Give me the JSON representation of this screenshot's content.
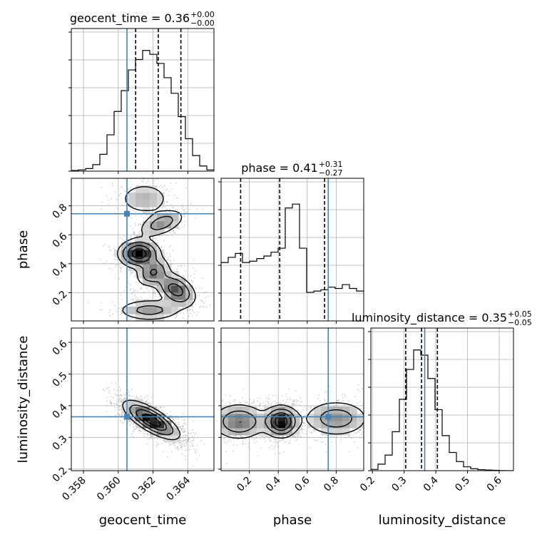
{
  "chart_data": {
    "type": "corner",
    "parameters": [
      "geocent_time",
      "phase",
      "luminosity_distance"
    ],
    "truth_color": "#4682b4",
    "titles": {
      "geocent_time": {
        "text": "geocent_time = 0.36",
        "plus": "+0.00",
        "minus": "−0.00"
      },
      "phase": {
        "text": "phase = 0.41",
        "plus": "+0.31",
        "minus": "−0.27"
      },
      "luminosity_distance": {
        "text": "luminosity_distance = 0.35",
        "plus": "+0.05",
        "minus": "−0.05"
      }
    },
    "axes": {
      "geocent_time": {
        "label": "geocent_time",
        "range": [
          0.3573,
          0.3655
        ],
        "ticks": [
          0.358,
          0.36,
          0.362,
          0.364
        ],
        "tick_labels": [
          "0.358",
          "0.360",
          "0.362",
          "0.364"
        ]
      },
      "phase": {
        "label": "phase",
        "range": [
          0.005,
          0.99
        ],
        "ticks": [
          0.2,
          0.4,
          0.6,
          0.8
        ],
        "tick_labels": [
          "0.2",
          "0.4",
          "0.6",
          "0.8"
        ]
      },
      "luminosity_distance": {
        "label": "luminosity_distance",
        "range": [
          0.195,
          0.645
        ],
        "ticks": [
          0.2,
          0.3,
          0.4,
          0.5,
          0.6
        ],
        "tick_labels": [
          "0.2",
          "0.3",
          "0.4",
          "0.5",
          "0.6"
        ]
      }
    },
    "truths": {
      "geocent_time": 0.3605,
      "phase": 0.745,
      "luminosity_distance": 0.365
    },
    "quantiles": {
      "geocent_time": [
        0.361,
        0.3623,
        0.3636
      ],
      "phase": [
        0.14,
        0.41,
        0.72
      ],
      "luminosity_distance": [
        0.305,
        0.355,
        0.405
      ]
    },
    "histograms": {
      "geocent_time": {
        "edges": [
          0.3573,
          0.35771,
          0.35812,
          0.35853,
          0.35894,
          0.35935,
          0.35976,
          0.36017,
          0.36058,
          0.36099,
          0.3614,
          0.36181,
          0.36222,
          0.36263,
          0.36304,
          0.36345,
          0.36386,
          0.36427,
          0.36468,
          0.36509,
          0.3655
        ],
        "counts": [
          0.005,
          0.01,
          0.02,
          0.05,
          0.13,
          0.28,
          0.46,
          0.62,
          0.78,
          0.86,
          0.93,
          0.9,
          0.83,
          0.72,
          0.6,
          0.42,
          0.25,
          0.12,
          0.04,
          0.01
        ]
      },
      "phase": {
        "edges": [
          0.005,
          0.05425,
          0.1035,
          0.15275,
          0.202,
          0.25125,
          0.3005,
          0.34975,
          0.399,
          0.44825,
          0.4975,
          0.54675,
          0.596,
          0.64525,
          0.6945,
          0.74375,
          0.793,
          0.84225,
          0.8915,
          0.94075,
          0.99
        ],
        "counts": [
          0.45,
          0.49,
          0.52,
          0.45,
          0.46,
          0.48,
          0.5,
          0.53,
          0.56,
          0.87,
          0.9,
          0.56,
          0.22,
          0.23,
          0.24,
          0.26,
          0.25,
          0.28,
          0.25,
          0.23
        ]
      },
      "luminosity_distance": {
        "edges": [
          0.195,
          0.2175,
          0.24,
          0.2625,
          0.285,
          0.3075,
          0.33,
          0.3525,
          0.375,
          0.3975,
          0.42,
          0.4425,
          0.465,
          0.4875,
          0.51,
          0.5325,
          0.555,
          0.5775,
          0.6,
          0.6225,
          0.645
        ],
        "counts": [
          0.01,
          0.05,
          0.12,
          0.3,
          0.55,
          0.78,
          0.93,
          0.89,
          0.71,
          0.47,
          0.27,
          0.14,
          0.07,
          0.03,
          0.015,
          0.008,
          0.005,
          0.003,
          0.001,
          0.0
        ]
      }
    },
    "densities": {
      "phase_vs_geocent_time": {
        "components": [
          {
            "x": 0.3612,
            "y": 0.47,
            "sx": 0.0006,
            "sy": 0.05,
            "rho": 0.0,
            "w": 1.0
          },
          {
            "x": 0.362,
            "y": 0.34,
            "sx": 0.0005,
            "sy": 0.05,
            "rho": 0.3,
            "w": 0.55
          },
          {
            "x": 0.3633,
            "y": 0.22,
            "sx": 0.0006,
            "sy": 0.06,
            "rho": -0.4,
            "w": 0.7
          },
          {
            "x": 0.3618,
            "y": 0.08,
            "sx": 0.001,
            "sy": 0.04,
            "rho": 0.0,
            "w": 0.4
          },
          {
            "x": 0.3625,
            "y": 0.68,
            "sx": 0.0007,
            "sy": 0.05,
            "rho": 0.5,
            "w": 0.45
          },
          {
            "x": 0.3615,
            "y": 0.85,
            "sx": 0.0008,
            "sy": 0.06,
            "rho": 0.0,
            "w": 0.3
          }
        ]
      },
      "luminosity_distance_vs_geocent_time": {
        "components": [
          {
            "x": 0.3619,
            "y": 0.355,
            "sx": 0.0008,
            "sy": 0.03,
            "rho": -0.75,
            "w": 1.0
          }
        ]
      },
      "luminosity_distance_vs_phase": {
        "components": [
          {
            "x": 0.42,
            "y": 0.35,
            "sx": 0.06,
            "sy": 0.025,
            "rho": 0.0,
            "w": 1.0
          },
          {
            "x": 0.13,
            "y": 0.35,
            "sx": 0.1,
            "sy": 0.03,
            "rho": 0.0,
            "w": 0.55
          },
          {
            "x": 0.8,
            "y": 0.36,
            "sx": 0.12,
            "sy": 0.03,
            "rho": 0.0,
            "w": 0.45
          }
        ]
      }
    }
  }
}
